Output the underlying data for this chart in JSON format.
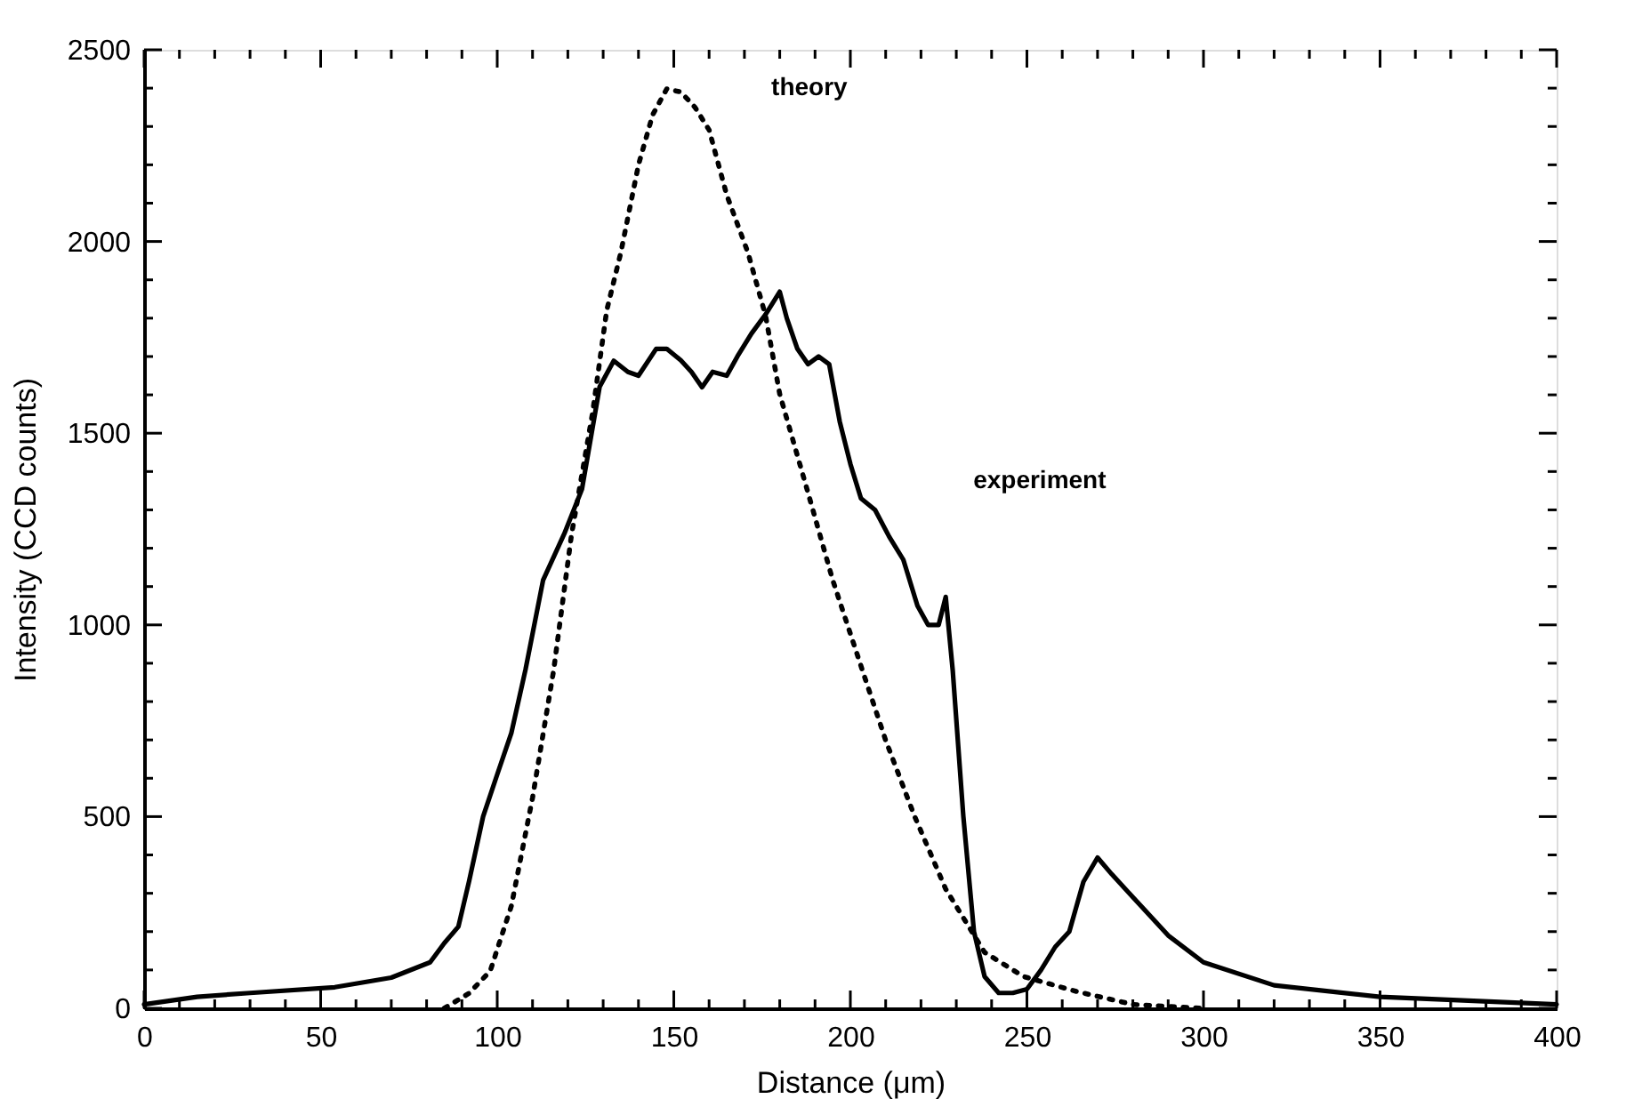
{
  "chart_data": {
    "type": "line",
    "xlabel": "Distance (μm)",
    "ylabel": "Intensity (CCD counts)",
    "xlim": [
      0,
      400
    ],
    "ylim": [
      0,
      2500
    ],
    "xticks": [
      0,
      {
        "value": 10,
        "label": null
      },
      {
        "value": 20,
        "label": null
      },
      {
        "value": 30,
        "label": null
      },
      {
        "value": 40,
        "label": null
      },
      50,
      {
        "value": 60,
        "label": null
      },
      {
        "value": 70,
        "label": null
      },
      {
        "value": 80,
        "label": null
      },
      {
        "value": 90,
        "label": null
      },
      100,
      {
        "value": 110,
        "label": null
      },
      {
        "value": 120,
        "label": null
      },
      {
        "value": 130,
        "label": null
      },
      {
        "value": 140,
        "label": null
      },
      150,
      {
        "value": 160,
        "label": null
      },
      {
        "value": 170,
        "label": null
      },
      {
        "value": 180,
        "label": null
      },
      {
        "value": 190,
        "label": null
      },
      200,
      {
        "value": 210,
        "label": null
      },
      {
        "value": 220,
        "label": null
      },
      {
        "value": 230,
        "label": null
      },
      {
        "value": 240,
        "label": null
      },
      250,
      {
        "value": 260,
        "label": null
      },
      {
        "value": 270,
        "label": null
      },
      {
        "value": 280,
        "label": null
      },
      {
        "value": 290,
        "label": null
      },
      300,
      {
        "value": 310,
        "label": null
      },
      {
        "value": 320,
        "label": null
      },
      {
        "value": 330,
        "label": null
      },
      {
        "value": 340,
        "label": null
      },
      350,
      {
        "value": 360,
        "label": null
      },
      {
        "value": 370,
        "label": null
      },
      {
        "value": 380,
        "label": null
      },
      {
        "value": 390,
        "label": null
      },
      400
    ],
    "yticks": [
      0,
      {
        "value": 100,
        "label": null
      },
      {
        "value": 200,
        "label": null
      },
      {
        "value": 300,
        "label": null
      },
      {
        "value": 400,
        "label": null
      },
      500,
      {
        "value": 600,
        "label": null
      },
      {
        "value": 700,
        "label": null
      },
      {
        "value": 800,
        "label": null
      },
      {
        "value": 900,
        "label": null
      },
      1000,
      {
        "value": 1100,
        "label": null
      },
      {
        "value": 1200,
        "label": null
      },
      {
        "value": 1300,
        "label": null
      },
      {
        "value": 1400,
        "label": null
      },
      1500,
      {
        "value": 1600,
        "label": null
      },
      {
        "value": 1700,
        "label": null
      },
      {
        "value": 1800,
        "label": null
      },
      {
        "value": 1900,
        "label": null
      },
      2000,
      {
        "value": 2100,
        "label": null
      },
      {
        "value": 2200,
        "label": null
      },
      {
        "value": 2300,
        "label": null
      },
      {
        "value": 2400,
        "label": null
      },
      2500
    ],
    "grid": false,
    "marker": "none",
    "series": [
      {
        "color": "#000000",
        "line_style": "solid",
        "x": [
          0,
          15,
          30,
          54,
          70,
          81,
          85,
          89,
          92,
          96,
          100,
          104,
          108,
          113,
          119,
          124,
          129,
          133,
          137,
          140,
          145,
          148,
          152,
          155,
          158,
          161,
          165,
          168,
          172,
          176,
          180,
          182,
          185,
          188,
          191,
          194,
          197,
          200,
          203,
          207,
          211,
          215,
          219,
          222,
          225,
          227,
          229,
          232,
          235,
          238,
          242,
          246,
          250,
          254,
          258,
          262,
          266,
          270,
          274,
          280,
          290,
          300,
          320,
          350,
          400
        ],
        "values": [
          10,
          30,
          40,
          55,
          80,
          120,
          170,
          213,
          330,
          500,
          610,
          718,
          883,
          1117,
          1238,
          1354,
          1621,
          1689,
          1660,
          1650,
          1720,
          1720,
          1690,
          1660,
          1620,
          1660,
          1650,
          1700,
          1760,
          1810,
          1869,
          1800,
          1720,
          1680,
          1700,
          1680,
          1530,
          1420,
          1330,
          1300,
          1230,
          1170,
          1050,
          1000,
          1000,
          1073,
          880,
          500,
          200,
          83,
          40,
          40,
          50,
          100,
          160,
          200,
          330,
          393,
          350,
          290,
          190,
          120,
          60,
          30,
          10
        ]
      },
      {
        "color": "#000000",
        "line_style": "dotted",
        "x": [
          85,
          92,
          98,
          104,
          110,
          116,
          121,
          127,
          131,
          135,
          140,
          144,
          148,
          152,
          156,
          160,
          165,
          171,
          176,
          180,
          188,
          195,
          203,
          210,
          218,
          227,
          238,
          249,
          264,
          280,
          300
        ],
        "values": [
          0,
          39,
          97,
          267,
          549,
          883,
          1233,
          1553,
          1820,
          1971,
          2200,
          2330,
          2398,
          2390,
          2350,
          2291,
          2121,
          1971,
          1806,
          1602,
          1345,
          1117,
          893,
          699,
          505,
          311,
          146,
          83,
          44,
          10,
          0
        ]
      }
    ],
    "annotations": [
      "theory",
      "experiment"
    ]
  }
}
